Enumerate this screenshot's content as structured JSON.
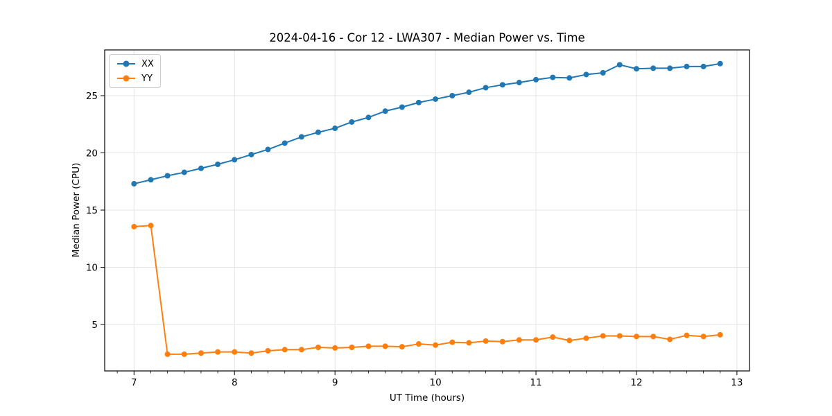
{
  "chart_data": {
    "type": "line",
    "title": "2024-04-16 - Cor 12 - LWA307 - Median Power vs. Time",
    "xlabel": "UT Time (hours)",
    "ylabel": "Median Power (CPU)",
    "xlim": [
      6.708,
      13.125
    ],
    "ylim": [
      0.94,
      29.0
    ],
    "x_ticks": [
      7,
      8,
      9,
      10,
      11,
      12,
      13
    ],
    "x_minor_step": 0.1666667,
    "y_ticks": [
      5,
      10,
      15,
      20,
      25
    ],
    "grid": true,
    "grid_color": "#e4e4e4",
    "legend_position": "upper left",
    "marker": "circle",
    "x": [
      7.0,
      7.167,
      7.333,
      7.5,
      7.667,
      7.833,
      8.0,
      8.167,
      8.333,
      8.5,
      8.667,
      8.833,
      9.0,
      9.167,
      9.333,
      9.5,
      9.667,
      9.833,
      10.0,
      10.167,
      10.333,
      10.5,
      10.667,
      10.833,
      11.0,
      11.167,
      11.333,
      11.5,
      11.667,
      11.833,
      12.0,
      12.167,
      12.333,
      12.5,
      12.667,
      12.833
    ],
    "series": [
      {
        "name": "XX",
        "color": "#1f77b4",
        "values": [
          17.3,
          17.65,
          18.0,
          18.3,
          18.65,
          19.0,
          19.4,
          19.85,
          20.3,
          20.85,
          21.4,
          21.8,
          22.15,
          22.7,
          23.1,
          23.65,
          24.0,
          24.4,
          24.7,
          25.0,
          25.3,
          25.7,
          25.95,
          26.15,
          26.4,
          26.6,
          26.55,
          26.85,
          27.0,
          27.7,
          27.35,
          27.4,
          27.4,
          27.55,
          27.55,
          27.8
        ]
      },
      {
        "name": "YY",
        "color": "#ff7f0e",
        "values": [
          13.55,
          13.65,
          2.4,
          2.4,
          2.5,
          2.6,
          2.6,
          2.5,
          2.7,
          2.8,
          2.8,
          3.0,
          2.95,
          3.0,
          3.1,
          3.1,
          3.05,
          3.3,
          3.2,
          3.45,
          3.4,
          3.55,
          3.5,
          3.65,
          3.65,
          3.9,
          3.6,
          3.8,
          4.0,
          4.0,
          3.95,
          3.95,
          3.7,
          4.05,
          3.95,
          4.1
        ]
      }
    ]
  }
}
